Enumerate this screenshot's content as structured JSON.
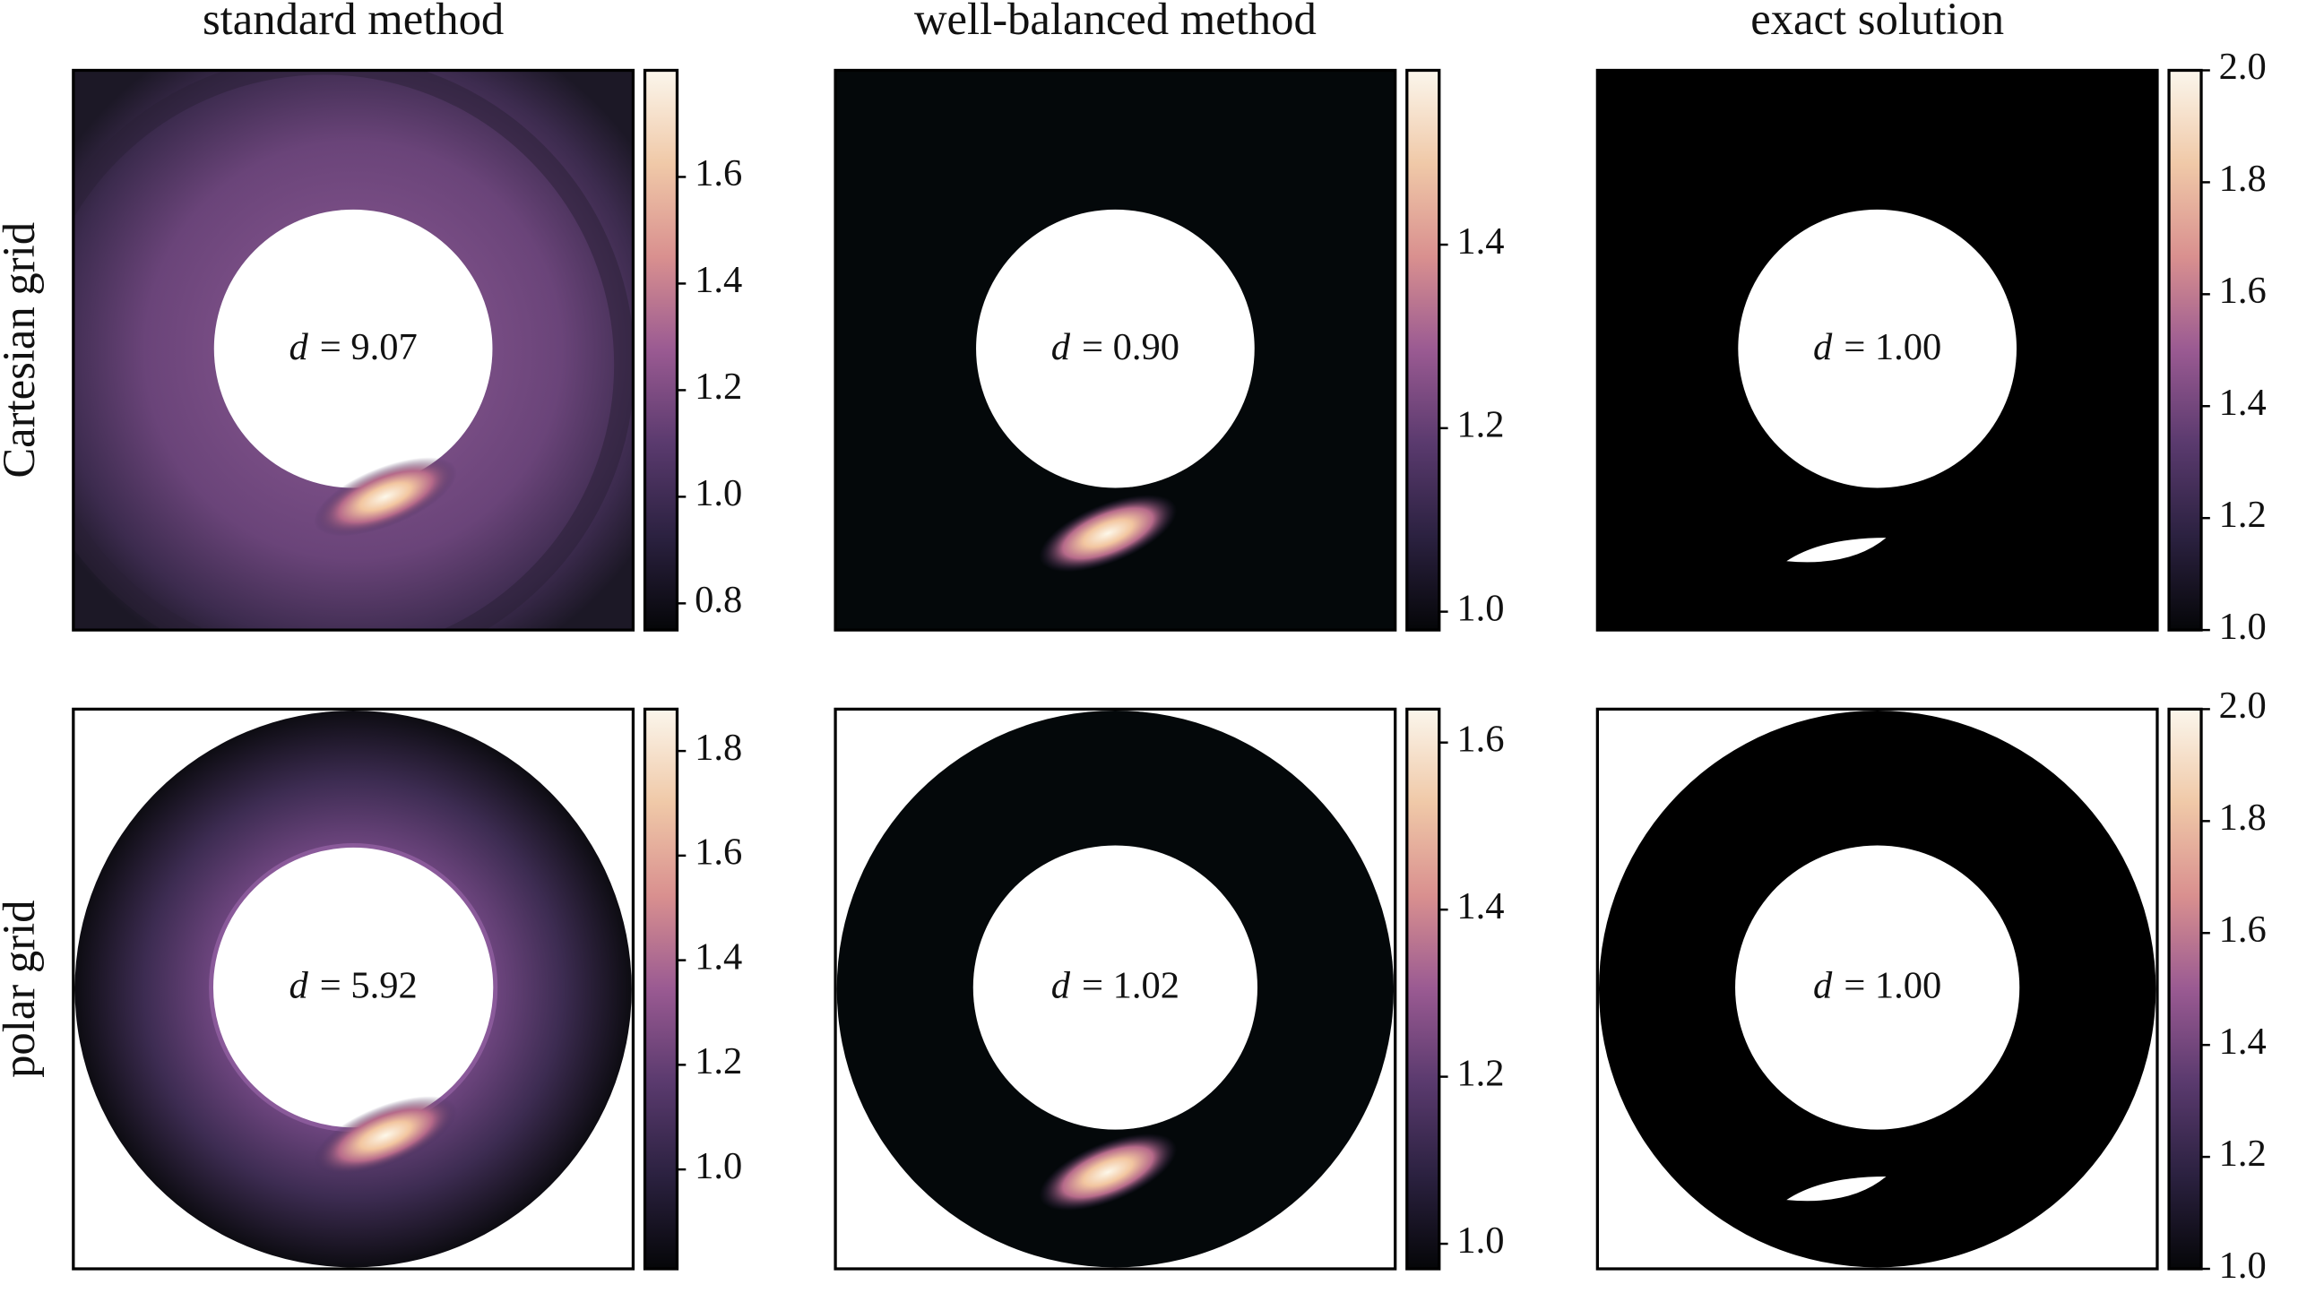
{
  "column_titles": [
    "standard method",
    "well-balanced method",
    "exact solution"
  ],
  "row_labels": [
    "Cartesian grid",
    "polar grid"
  ],
  "colormap": [
    "#050608",
    "#2b2140",
    "#5a3a6e",
    "#9a5a92",
    "#d9908f",
    "#f0c9a8",
    "#fbf6ec"
  ],
  "chart_data": [
    {
      "type": "heatmap",
      "annotation": {
        "symbol": "d",
        "text": "= 9.07"
      },
      "colorbar": {
        "lim": [
          0.75,
          1.8
        ],
        "ticks": [
          0.8,
          {
            "value": 1,
            "label": "1.0"
          },
          1.2,
          1.4,
          1.6
        ]
      }
    },
    {
      "type": "heatmap",
      "annotation": {
        "symbol": "d",
        "text": "= 0.90"
      },
      "colorbar": {
        "lim": [
          0.98,
          1.59
        ],
        "ticks": [
          {
            "value": 1,
            "label": "1.0"
          },
          1.2,
          1.4
        ]
      }
    },
    {
      "type": "heatmap",
      "annotation": {
        "symbol": "d",
        "text": "= 1.00"
      },
      "colorbar": {
        "lim": [
          1,
          2
        ],
        "ticks": [
          {
            "value": 1,
            "label": "1.0"
          },
          1.2,
          1.4,
          1.6,
          1.8,
          {
            "value": 2,
            "label": "2.0"
          }
        ]
      }
    },
    {
      "type": "heatmap",
      "annotation": {
        "symbol": "d",
        "text": "= 5.92"
      },
      "colorbar": {
        "lim": [
          0.81,
          1.88
        ],
        "ticks": [
          {
            "value": 1,
            "label": "1.0"
          },
          1.2,
          1.4,
          1.6,
          1.8
        ]
      }
    },
    {
      "type": "heatmap",
      "annotation": {
        "symbol": "d",
        "text": "= 1.02"
      },
      "colorbar": {
        "lim": [
          0.97,
          1.64
        ],
        "ticks": [
          {
            "value": 1,
            "label": "1.0"
          },
          1.2,
          1.4,
          1.6
        ]
      }
    },
    {
      "type": "heatmap",
      "annotation": {
        "symbol": "d",
        "text": "= 1.00"
      },
      "colorbar": {
        "lim": [
          1,
          2
        ],
        "ticks": [
          {
            "value": 1,
            "label": "1.0"
          },
          1.2,
          1.4,
          1.6,
          1.8,
          {
            "value": 2,
            "label": "2.0"
          }
        ]
      }
    }
  ]
}
